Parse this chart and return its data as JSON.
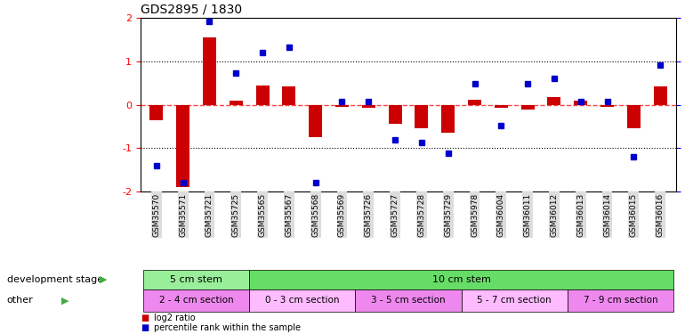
{
  "title": "GDS2895 / 1830",
  "samples": [
    "GSM35570",
    "GSM35571",
    "GSM35721",
    "GSM35725",
    "GSM35565",
    "GSM35567",
    "GSM35568",
    "GSM35569",
    "GSM35726",
    "GSM35727",
    "GSM35728",
    "GSM35729",
    "GSM35978",
    "GSM36004",
    "GSM36011",
    "GSM36012",
    "GSM36013",
    "GSM36014",
    "GSM36015",
    "GSM36016"
  ],
  "log2_ratio": [
    -0.35,
    -1.9,
    1.55,
    0.1,
    0.45,
    0.42,
    -0.75,
    -0.05,
    -0.08,
    -0.45,
    -0.55,
    -0.65,
    0.12,
    -0.08,
    -0.12,
    0.18,
    0.1,
    -0.05,
    -0.55,
    0.42
  ],
  "percentile": [
    15,
    5,
    98,
    68,
    80,
    83,
    5,
    52,
    52,
    30,
    28,
    22,
    62,
    38,
    62,
    65,
    52,
    52,
    20,
    73
  ],
  "bar_color": "#cc0000",
  "dot_color": "#0000cc",
  "zero_line_color": "#ff4444",
  "dotted_line_color": "#000000",
  "background_color": "#ffffff",
  "dev_stage_row": [
    {
      "label": "5 cm stem",
      "start": 0,
      "end": 4,
      "color": "#99ee99"
    },
    {
      "label": "10 cm stem",
      "start": 4,
      "end": 20,
      "color": "#66dd66"
    }
  ],
  "other_row": [
    {
      "label": "2 - 4 cm section",
      "start": 0,
      "end": 4,
      "color": "#ee88ee"
    },
    {
      "label": "0 - 3 cm section",
      "start": 4,
      "end": 8,
      "color": "#ffbbff"
    },
    {
      "label": "3 - 5 cm section",
      "start": 8,
      "end": 12,
      "color": "#ee88ee"
    },
    {
      "label": "5 - 7 cm section",
      "start": 12,
      "end": 16,
      "color": "#ffbbff"
    },
    {
      "label": "7 - 9 cm section",
      "start": 16,
      "end": 20,
      "color": "#ee88ee"
    }
  ],
  "dev_stage_label": "development stage",
  "other_label": "other",
  "tick_label_bg": "#dddddd"
}
